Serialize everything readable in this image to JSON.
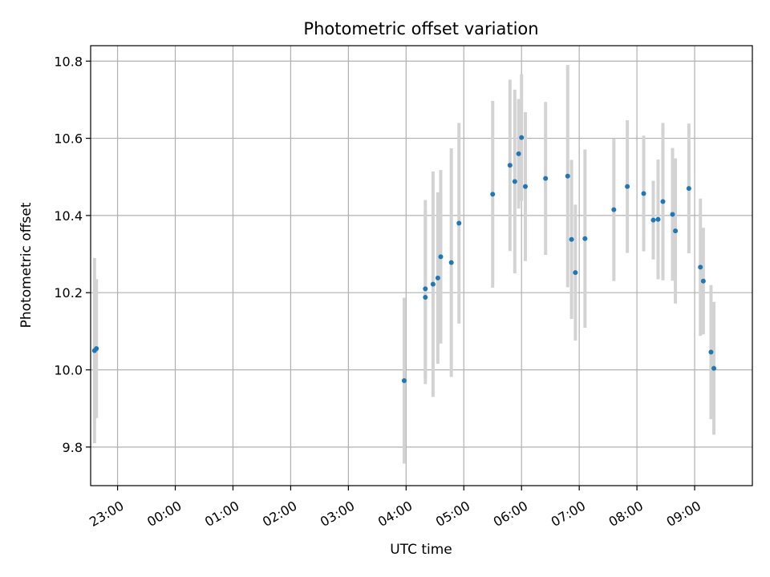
{
  "chart_data": {
    "type": "scatter",
    "title": "Photometric offset variation",
    "xlabel": "UTC time",
    "ylabel": "Photometric offset",
    "grid": true,
    "ylim": [
      9.7,
      10.84
    ],
    "xlim": [
      "22:32",
      "10:00"
    ],
    "x_ticks": [
      "23:00",
      "00:00",
      "01:00",
      "02:00",
      "03:00",
      "04:00",
      "05:00",
      "06:00",
      "07:00",
      "08:00",
      "09:00"
    ],
    "y_ticks": [
      "9.8",
      "10.0",
      "10.2",
      "10.4",
      "10.6",
      "10.8"
    ],
    "colors": {
      "points": "#1f77b4",
      "error_bars": "#d3d3d3",
      "grid": "#b0b0b0"
    },
    "series": [
      {
        "points": [
          {
            "x": "22:36",
            "y": 10.05,
            "err": 0.24
          },
          {
            "x": "22:38",
            "y": 10.055,
            "err": 0.18
          },
          {
            "x": "03:58",
            "y": 9.972,
            "err": 0.215
          },
          {
            "x": "04:20",
            "y": 10.188,
            "err": 0.225
          },
          {
            "x": "04:20",
            "y": 10.21,
            "err": 0.23
          },
          {
            "x": "04:28",
            "y": 10.222,
            "err": 0.292
          },
          {
            "x": "04:33",
            "y": 10.238,
            "err": 0.222
          },
          {
            "x": "04:36",
            "y": 10.293,
            "err": 0.225
          },
          {
            "x": "04:47",
            "y": 10.278,
            "err": 0.296
          },
          {
            "x": "04:55",
            "y": 10.38,
            "err": 0.26
          },
          {
            "x": "05:30",
            "y": 10.455,
            "err": 0.242
          },
          {
            "x": "05:48",
            "y": 10.53,
            "err": 0.222
          },
          {
            "x": "05:53",
            "y": 10.488,
            "err": 0.238
          },
          {
            "x": "05:57",
            "y": 10.56,
            "err": 0.142
          },
          {
            "x": "06:00",
            "y": 10.602,
            "err": 0.164
          },
          {
            "x": "06:04",
            "y": 10.475,
            "err": 0.193
          },
          {
            "x": "06:25",
            "y": 10.496,
            "err": 0.198
          },
          {
            "x": "06:48",
            "y": 10.502,
            "err": 0.288
          },
          {
            "x": "06:52",
            "y": 10.338,
            "err": 0.206
          },
          {
            "x": "06:56",
            "y": 10.252,
            "err": 0.176
          },
          {
            "x": "07:06",
            "y": 10.34,
            "err": 0.231
          },
          {
            "x": "07:36",
            "y": 10.415,
            "err": 0.185
          },
          {
            "x": "07:50",
            "y": 10.475,
            "err": 0.172
          },
          {
            "x": "08:07",
            "y": 10.457,
            "err": 0.15
          },
          {
            "x": "08:17",
            "y": 10.388,
            "err": 0.102
          },
          {
            "x": "08:22",
            "y": 10.39,
            "err": 0.155
          },
          {
            "x": "08:27",
            "y": 10.436,
            "err": 0.204
          },
          {
            "x": "08:37",
            "y": 10.403,
            "err": 0.172
          },
          {
            "x": "08:40",
            "y": 10.36,
            "err": 0.188
          },
          {
            "x": "08:54",
            "y": 10.47,
            "err": 0.168
          },
          {
            "x": "09:06",
            "y": 10.266,
            "err": 0.178
          },
          {
            "x": "09:09",
            "y": 10.23,
            "err": 0.138
          },
          {
            "x": "09:17",
            "y": 10.046,
            "err": 0.174
          },
          {
            "x": "09:20",
            "y": 10.004,
            "err": 0.172
          }
        ]
      }
    ]
  }
}
